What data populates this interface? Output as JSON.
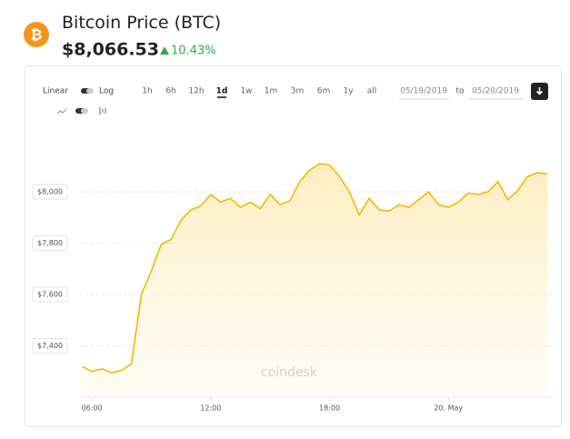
{
  "header": {
    "logo": "₿",
    "title": "Bitcoin Price",
    "symbol": "(BTC)",
    "price": "$8,066.53",
    "change": "10.43%"
  },
  "controls": {
    "scale": [
      "Linear",
      "Log"
    ],
    "ranges": [
      "1h",
      "6h",
      "12h",
      "1d",
      "1w",
      "1m",
      "3m",
      "6m",
      "1y",
      "all"
    ],
    "active_range": "1d",
    "from": "05/19/2019",
    "to_label": "to",
    "to": "05/20/2019"
  },
  "chart_data": {
    "type": "line",
    "watermark": "coindesk",
    "x": [
      "05/19/2019 05:30",
      "05/19/2019 06:00",
      "05/19/2019 06:30",
      "05/19/2019 07:00",
      "05/19/2019 07:30",
      "05/19/2019 08:00",
      "05/19/2019 08:30",
      "05/19/2019 09:00",
      "05/19/2019 09:30",
      "05/19/2019 10:00",
      "05/19/2019 10:30",
      "05/19/2019 11:00",
      "05/19/2019 11:30",
      "05/19/2019 12:00",
      "05/19/2019 12:30",
      "05/19/2019 13:00",
      "05/19/2019 13:30",
      "05/19/2019 14:00",
      "05/19/2019 14:30",
      "05/19/2019 15:00",
      "05/19/2019 15:30",
      "05/19/2019 16:00",
      "05/19/2019 16:30",
      "05/19/2019 17:00",
      "05/19/2019 17:30",
      "05/19/2019 18:00",
      "05/19/2019 18:30",
      "05/19/2019 19:00",
      "05/19/2019 19:30",
      "05/19/2019 20:00",
      "05/19/2019 20:30",
      "05/19/2019 21:00",
      "05/19/2019 21:30",
      "05/19/2019 22:00",
      "05/19/2019 22:30",
      "05/19/2019 23:00",
      "05/19/2019 23:30",
      "05/20/2019 00:00",
      "05/20/2019 00:30",
      "05/20/2019 01:00",
      "05/20/2019 01:30",
      "05/20/2019 02:00",
      "05/20/2019 02:30",
      "05/20/2019 03:00",
      "05/20/2019 03:30",
      "05/20/2019 04:00",
      "05/20/2019 04:30",
      "05/20/2019 05:00"
    ],
    "series": [
      {
        "name": "BTC",
        "color": "#f5b800",
        "values": [
          7320,
          7300,
          7310,
          7295,
          7305,
          7330,
          7600,
          7690,
          7795,
          7815,
          7890,
          7930,
          7945,
          7990,
          7960,
          7975,
          7940,
          7960,
          7935,
          7990,
          7950,
          7965,
          8040,
          8085,
          8110,
          8105,
          8060,
          8000,
          7910,
          7975,
          7930,
          7925,
          7950,
          7940,
          7970,
          8000,
          7950,
          7940,
          7960,
          7995,
          7990,
          8000,
          8040,
          7970,
          8005,
          8060,
          8075,
          8070
        ]
      }
    ],
    "xlim": [
      "05/19/2019 05:24",
      "05/20/2019 05:16"
    ],
    "xticks": [
      {
        "value": "05/19/2019 06:00",
        "label": "06:00"
      },
      {
        "value": "05/19/2019 12:00",
        "label": "12:00"
      },
      {
        "value": "05/19/2019 18:00",
        "label": "18:00"
      },
      {
        "value": "05/20/2019 00:00",
        "label": "20. May"
      }
    ],
    "ylim": [
      7200,
      8220
    ],
    "yticks": [
      {
        "value": 7400,
        "label": "$7,400"
      },
      {
        "value": 7600,
        "label": "$7,600"
      },
      {
        "value": 7800,
        "label": "$7,800"
      },
      {
        "value": 8000,
        "label": "$8,000"
      }
    ],
    "grid": true
  }
}
